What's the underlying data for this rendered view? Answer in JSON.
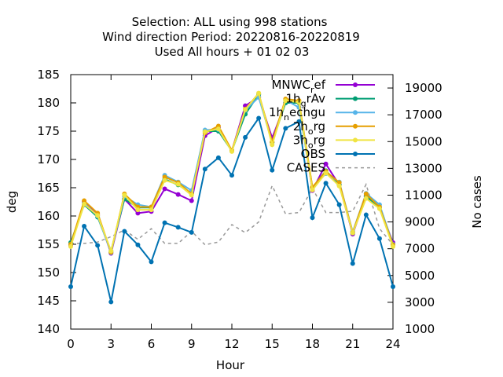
{
  "chart_data": {
    "type": "line",
    "title_lines": [
      "Selection: ALL using   998 stations",
      "Wind direction   Period: 20220816-20220819",
      "Used  All hours  + 01 02 03"
    ],
    "xlabel": "Hour",
    "ylabel": "deg",
    "y2label": "No cases",
    "xlim": [
      0,
      24
    ],
    "ylim": [
      140,
      185
    ],
    "y2lim": [
      1000,
      20000
    ],
    "xticks": [
      0,
      3,
      6,
      9,
      12,
      15,
      18,
      21,
      24
    ],
    "yticks": [
      140,
      145,
      150,
      155,
      160,
      165,
      170,
      175,
      180,
      185
    ],
    "y2ticks": [
      1000,
      3000,
      5000,
      7000,
      9000,
      11000,
      13000,
      15000,
      17000,
      19000
    ],
    "grid": false,
    "legend_position": "top-right",
    "x": [
      0,
      1,
      2,
      3,
      4,
      5,
      6,
      7,
      8,
      9,
      10,
      11,
      12,
      13,
      14,
      15,
      16,
      17,
      18,
      19,
      20,
      21,
      22,
      23,
      24
    ],
    "series": [
      {
        "name": "MNWC_ref",
        "legend_parts": [
          "MNWC",
          "r",
          "ef"
        ],
        "color": "#9400d3",
        "marker": "circle",
        "values": [
          154.8,
          162.5,
          160.2,
          153.4,
          163.0,
          160.5,
          160.8,
          164.8,
          163.8,
          162.7,
          174.2,
          175.6,
          171.5,
          179.5,
          181.0,
          173.8,
          180.0,
          180.0,
          164.5,
          169.2,
          165.5,
          156.8,
          163.5,
          161.5,
          155.3
        ]
      },
      {
        "name": "1hg_rAv",
        "legend_parts": [
          "1h",
          "g",
          "rAv"
        ],
        "color": "#009e73",
        "marker": "circle",
        "values": [
          155.3,
          162.0,
          159.8,
          153.8,
          163.0,
          161.5,
          161.5,
          166.5,
          165.5,
          164.0,
          175.0,
          175.0,
          171.5,
          178.0,
          181.5,
          173.0,
          180.0,
          180.0,
          165.0,
          168.0,
          165.5,
          157.0,
          163.5,
          161.5,
          155.0
        ]
      },
      {
        "name": "1h_nechgu",
        "legend_parts": [
          "1h",
          "n",
          "echgu"
        ],
        "color": "#56b4e9",
        "marker": "circle",
        "values": [
          155.0,
          162.3,
          160.0,
          153.5,
          163.5,
          162.0,
          161.6,
          167.2,
          166.0,
          164.5,
          175.2,
          175.3,
          171.5,
          178.7,
          181.0,
          173.0,
          180.5,
          179.2,
          165.0,
          167.5,
          166.0,
          157.2,
          164.0,
          162.0,
          155.0
        ]
      },
      {
        "name": "2h_org",
        "legend_parts": [
          "2h",
          "o",
          "rg"
        ],
        "color": "#e69f00",
        "marker": "circle",
        "values": [
          155.0,
          162.7,
          160.5,
          153.6,
          163.9,
          161.6,
          161.6,
          166.9,
          165.9,
          163.9,
          174.7,
          175.9,
          171.6,
          178.9,
          181.7,
          173.1,
          180.7,
          180.4,
          165.1,
          167.9,
          165.9,
          157.1,
          163.9,
          161.6,
          154.9
        ]
      },
      {
        "name": "3h_org",
        "legend_parts": [
          "3h",
          "o",
          "rg"
        ],
        "color": "#f0e442",
        "marker": "circle",
        "values": [
          154.6,
          162.1,
          160.1,
          153.8,
          163.7,
          161.1,
          161.1,
          166.3,
          165.6,
          163.7,
          174.9,
          175.4,
          171.4,
          178.8,
          181.7,
          172.6,
          180.4,
          180.1,
          164.6,
          167.6,
          165.3,
          157.0,
          163.1,
          161.3,
          154.6
        ]
      },
      {
        "name": "OBS",
        "color": "#0072b2",
        "marker": "circle",
        "values": [
          147.5,
          158.2,
          154.8,
          144.8,
          157.3,
          154.9,
          151.9,
          158.8,
          158.0,
          157.1,
          168.3,
          170.3,
          167.2,
          173.9,
          177.3,
          168.1,
          175.5,
          176.7,
          159.7,
          165.8,
          162.0,
          151.6,
          160.2,
          156.0,
          147.5
        ]
      },
      {
        "name": "CASES",
        "color": "#999999",
        "dashed": true,
        "axis": "y2",
        "values": [
          7400,
          7400,
          7500,
          7900,
          8400,
          7700,
          8500,
          7400,
          7400,
          8300,
          7300,
          7500,
          8800,
          8200,
          9000,
          11700,
          9600,
          9700,
          11500,
          9700,
          9700,
          9800,
          11800,
          8500,
          7300
        ]
      }
    ]
  }
}
